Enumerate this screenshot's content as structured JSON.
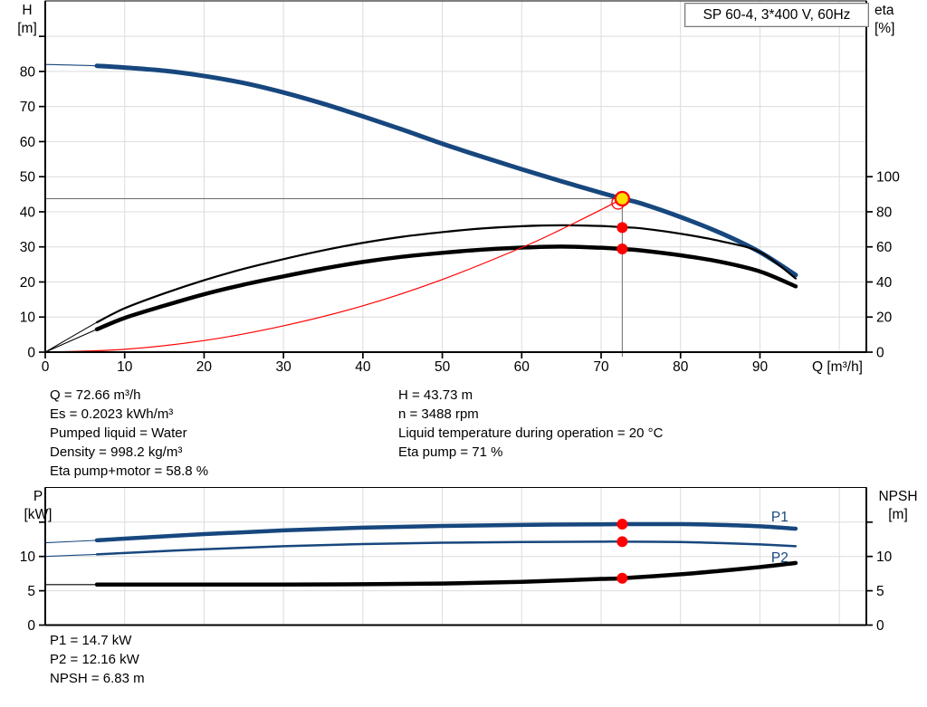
{
  "title_box": {
    "text": "SP 60-4, 3*400 V, 60Hz"
  },
  "top_chart": {
    "axis_titles": {
      "left": [
        "H",
        "[m]"
      ],
      "right": [
        "eta",
        "[%]"
      ],
      "x": "Q [m³/h]"
    }
  },
  "bottom_chart": {
    "axis_titles": {
      "left": [
        "P",
        "[kW]"
      ],
      "right": [
        "NPSH",
        "[m]"
      ]
    }
  },
  "annotations": {
    "left_lines": [
      "Q = 72.66 m³/h",
      "Es = 0.2023 kWh/m³",
      "Pumped liquid = Water",
      "Density = 998.2 kg/m³",
      "Eta pump+motor = 58.8 %"
    ],
    "right_lines": [
      "H = 43.73 m",
      "n = 3488 rpm",
      "Liquid temperature during operation = 20 °C",
      "Eta pump = 71 %"
    ],
    "bottom_lines": [
      "P1 = 14.7 kW",
      "P2 = 12.16 kW",
      "NPSH = 6.83 m"
    ]
  },
  "colors": {
    "curve_blue": "#17477E",
    "curve_black": "#000000",
    "curve_red": "#FF0000",
    "marker_yellow": "#FFDE00",
    "marker_red": "#FF0000",
    "grid": "#DCDCDC",
    "crosshair": "#6B6B6B",
    "axis": "#000000"
  },
  "chart_data": [
    {
      "type": "line",
      "title": "SP 60-4, 3*400 V, 60Hz",
      "xlabel": "Q [m³/h]",
      "ylabel_left": "H [m]",
      "ylabel_right": "eta [%]",
      "x_range": [
        0,
        103.4
      ],
      "y_left_range": [
        0,
        100.1
      ],
      "y_right_range": [
        0,
        200.2
      ],
      "x_ticks": [
        {
          "v": 0,
          "label": "0"
        },
        {
          "v": 10,
          "label": "10"
        },
        {
          "v": 20,
          "label": "20"
        },
        {
          "v": 30,
          "label": "30"
        },
        {
          "v": 40,
          "label": "40"
        },
        {
          "v": 50,
          "label": "50"
        },
        {
          "v": 60,
          "label": "60"
        },
        {
          "v": 70,
          "label": "70"
        },
        {
          "v": 80,
          "label": "80"
        },
        {
          "v": 90,
          "label": "90"
        }
      ],
      "y_left_ticks": [
        {
          "v": 0,
          "label": "0"
        },
        {
          "v": 10,
          "label": "10"
        },
        {
          "v": 20,
          "label": "20"
        },
        {
          "v": 30,
          "label": "30"
        },
        {
          "v": 40,
          "label": "40"
        },
        {
          "v": 50,
          "label": "50"
        },
        {
          "v": 60,
          "label": "60"
        },
        {
          "v": 70,
          "label": "70"
        },
        {
          "v": 80,
          "label": "80"
        },
        {
          "v": 90,
          "label": ""
        }
      ],
      "y_right_ticks": [
        {
          "v": 0,
          "label": "0"
        },
        {
          "v": 20,
          "label": "20"
        },
        {
          "v": 40,
          "label": "40"
        },
        {
          "v": 60,
          "label": "60"
        },
        {
          "v": 80,
          "label": "80"
        },
        {
          "v": 100,
          "label": "100"
        }
      ],
      "grid_x": [
        10,
        20,
        30,
        40,
        50,
        60,
        70,
        80,
        90,
        100
      ],
      "grid_y": [
        10,
        20,
        30,
        40,
        50,
        60,
        70,
        80,
        90
      ],
      "operating_point": {
        "Q": 72.66,
        "H": 43.73,
        "eta_pump": 71,
        "eta_pump_motor": 58.8
      },
      "crosshair": {
        "q": 72.66,
        "v": 43.73
      },
      "series": [
        {
          "name": "Head curve H(Q)",
          "axis": "left",
          "color": "#17477E",
          "width": 5,
          "thick_from": 6.5,
          "points": [
            [
              0,
              82
            ],
            [
              6.5,
              81.6
            ],
            [
              10,
              81.1
            ],
            [
              15,
              80.2
            ],
            [
              20,
              78.7
            ],
            [
              25,
              76.7
            ],
            [
              30,
              74
            ],
            [
              35,
              70.8
            ],
            [
              40,
              67.2
            ],
            [
              45,
              63.4
            ],
            [
              50,
              59.4
            ],
            [
              55,
              55.7
            ],
            [
              60,
              52.1
            ],
            [
              65,
              48.7
            ],
            [
              70,
              45.4
            ],
            [
              72.66,
              43.73
            ],
            [
              75,
              42.4
            ],
            [
              80,
              38.5
            ],
            [
              85,
              34
            ],
            [
              90,
              28.5
            ],
            [
              94.5,
              22
            ]
          ]
        },
        {
          "name": "Eta pump",
          "axis": "right",
          "color": "#000000",
          "width": 2.2,
          "thick_from": 6.5,
          "points": [
            [
              0,
              0
            ],
            [
              6.5,
              17
            ],
            [
              10,
              25
            ],
            [
              15,
              33.5
            ],
            [
              20,
              41
            ],
            [
              25,
              47.5
            ],
            [
              30,
              53
            ],
            [
              35,
              58
            ],
            [
              40,
              62.3
            ],
            [
              45,
              65.8
            ],
            [
              50,
              68.4
            ],
            [
              55,
              70.5
            ],
            [
              60,
              71.8
            ],
            [
              65,
              72.3
            ],
            [
              70,
              71.9
            ],
            [
              72.66,
              71.2
            ],
            [
              75,
              70.6
            ],
            [
              80,
              67.5
            ],
            [
              85,
              63.3
            ],
            [
              90,
              57
            ],
            [
              94.5,
              42
            ]
          ]
        },
        {
          "name": "Eta pump+motor",
          "axis": "right",
          "color": "#000000",
          "width": 4.5,
          "thick_from": 6.5,
          "points": [
            [
              0,
              0
            ],
            [
              6.5,
              13
            ],
            [
              10,
              19.5
            ],
            [
              15,
              26.5
            ],
            [
              20,
              33
            ],
            [
              25,
              38.5
            ],
            [
              30,
              43.2
            ],
            [
              35,
              47.6
            ],
            [
              40,
              51.4
            ],
            [
              45,
              54.4
            ],
            [
              50,
              56.6
            ],
            [
              55,
              58.4
            ],
            [
              60,
              59.6
            ],
            [
              65,
              60.2
            ],
            [
              70,
              59.5
            ],
            [
              72.66,
              58.8
            ],
            [
              75,
              58
            ],
            [
              80,
              55.2
            ],
            [
              85,
              51.5
            ],
            [
              90,
              46
            ],
            [
              94.5,
              37.5
            ]
          ]
        },
        {
          "name": "System curve",
          "axis": "left",
          "color": "#FF0000",
          "width": 1.2,
          "points": [
            [
              0,
              0
            ],
            [
              10,
              0.8
            ],
            [
              20,
              3.3
            ],
            [
              30,
              7.5
            ],
            [
              40,
              13.2
            ],
            [
              50,
              20.7
            ],
            [
              60,
              29.8
            ],
            [
              65,
              35
            ],
            [
              70,
              40.6
            ],
            [
              72.66,
              43.73
            ]
          ]
        }
      ],
      "markers": [
        {
          "type": "duty",
          "q": 72.66,
          "v": 43.73,
          "axis": "left"
        },
        {
          "type": "dot",
          "q": 72.66,
          "v": 71,
          "axis": "right"
        },
        {
          "type": "dot",
          "q": 72.66,
          "v": 58.8,
          "axis": "right"
        }
      ]
    },
    {
      "type": "line",
      "title": "Power and NPSH curves",
      "xlabel": "",
      "ylabel_left": "P [kW]",
      "ylabel_right": "NPSH [m]",
      "x_range": [
        0,
        103.4
      ],
      "y_left_range": [
        0,
        20.05
      ],
      "y_right_range": [
        0,
        20.05
      ],
      "x_ticks": [],
      "y_left_ticks": [
        {
          "v": 0,
          "label": "0"
        },
        {
          "v": 5,
          "label": "5"
        },
        {
          "v": 10,
          "label": "10"
        },
        {
          "v": 15,
          "label": ""
        }
      ],
      "y_right_ticks": [
        {
          "v": 0,
          "label": "0"
        },
        {
          "v": 5,
          "label": "5"
        },
        {
          "v": 10,
          "label": "10"
        },
        {
          "v": 15,
          "label": ""
        }
      ],
      "grid_x": [
        10,
        20,
        30,
        40,
        50,
        60,
        70,
        80,
        90,
        100
      ],
      "grid_y": [
        5,
        10,
        15
      ],
      "operating_point": {
        "Q": 72.66,
        "P1": 14.7,
        "P2": 12.16,
        "NPSH": 6.83
      },
      "series": [
        {
          "name": "P1",
          "axis": "left",
          "color": "#17477E",
          "width": 4.5,
          "thick_from": 6.5,
          "points": [
            [
              0,
              12
            ],
            [
              6.5,
              12.35
            ],
            [
              10,
              12.6
            ],
            [
              20,
              13.25
            ],
            [
              30,
              13.8
            ],
            [
              40,
              14.2
            ],
            [
              50,
              14.45
            ],
            [
              60,
              14.6
            ],
            [
              70,
              14.68
            ],
            [
              72.66,
              14.7
            ],
            [
              80,
              14.7
            ],
            [
              85,
              14.6
            ],
            [
              90,
              14.4
            ],
            [
              94.5,
              14.05
            ]
          ]
        },
        {
          "name": "P2",
          "axis": "left",
          "color": "#17477E",
          "width": 2.5,
          "thick_from": 6.5,
          "points": [
            [
              0,
              10
            ],
            [
              6.5,
              10.3
            ],
            [
              10,
              10.5
            ],
            [
              20,
              11.05
            ],
            [
              30,
              11.5
            ],
            [
              40,
              11.8
            ],
            [
              50,
              12
            ],
            [
              60,
              12.1
            ],
            [
              70,
              12.15
            ],
            [
              72.66,
              12.16
            ],
            [
              80,
              12.1
            ],
            [
              85,
              11.95
            ],
            [
              90,
              11.75
            ],
            [
              94.5,
              11.5
            ]
          ]
        },
        {
          "name": "NPSH",
          "axis": "left",
          "color": "#000000",
          "width": 4.5,
          "thick_from": 6.5,
          "points": [
            [
              0,
              5.9
            ],
            [
              6.5,
              5.9
            ],
            [
              10,
              5.9
            ],
            [
              20,
              5.9
            ],
            [
              30,
              5.9
            ],
            [
              40,
              5.95
            ],
            [
              50,
              6.05
            ],
            [
              60,
              6.3
            ],
            [
              70,
              6.72
            ],
            [
              72.66,
              6.83
            ],
            [
              80,
              7.4
            ],
            [
              85,
              7.9
            ],
            [
              90,
              8.45
            ],
            [
              94.5,
              9.05
            ]
          ]
        }
      ],
      "series_labels": [
        {
          "text": "P1",
          "q": 92.5,
          "v": 15.1,
          "color": "#17477E"
        },
        {
          "text": "P2",
          "q": 92.5,
          "v": 9.2,
          "color": "#17477E"
        }
      ],
      "markers": [
        {
          "type": "dot",
          "q": 72.66,
          "v": 14.7,
          "axis": "left"
        },
        {
          "type": "dot",
          "q": 72.66,
          "v": 12.16,
          "axis": "left"
        },
        {
          "type": "dot",
          "q": 72.66,
          "v": 6.83,
          "axis": "left"
        }
      ]
    }
  ]
}
